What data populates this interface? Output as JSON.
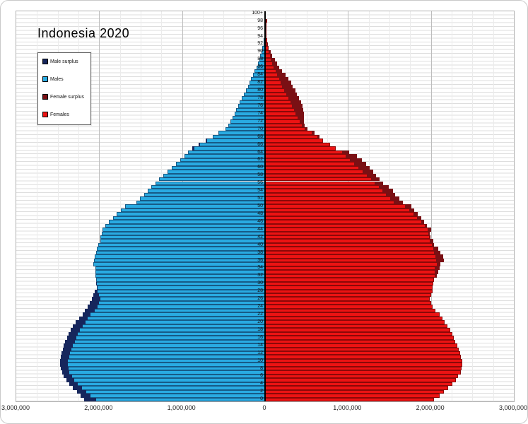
{
  "title": "Indonesia 2020",
  "legend": {
    "items": [
      {
        "label": "Male surplus",
        "color": "#16265c"
      },
      {
        "label": "Males",
        "color": "#29abe2"
      },
      {
        "label": "Female surplus",
        "color": "#7a1014"
      },
      {
        "label": "Females",
        "color": "#ec1313"
      }
    ]
  },
  "x_axis": {
    "tick_labels": [
      "3,000,000",
      "2,000,000",
      "1,000,000",
      "0",
      "1,000,000",
      "2,000,000",
      "3,000,000"
    ],
    "major_tick": 1000000,
    "minor_tick": 250000,
    "max_each_side": 3000000
  },
  "y_axis": {
    "unit": "age (single years)",
    "tick_labels": [
      "0",
      "2",
      "4",
      "6",
      "8",
      "10",
      "12",
      "14",
      "16",
      "18",
      "20",
      "22",
      "24",
      "26",
      "28",
      "30",
      "32",
      "34",
      "36",
      "38",
      "40",
      "42",
      "44",
      "46",
      "48",
      "50",
      "52",
      "54",
      "56",
      "58",
      "60",
      "62",
      "64",
      "66",
      "68",
      "70",
      "72",
      "74",
      "76",
      "78",
      "80",
      "82",
      "84",
      "86",
      "88",
      "90",
      "92",
      "94",
      "96",
      "98",
      "100+"
    ]
  },
  "chart_data": {
    "type": "bar",
    "subtype": "population_pyramid",
    "title": "Indonesia 2020",
    "orientation": "horizontal-mirrored",
    "ages": "0 to 100+ in single-year groups, bottom to top",
    "xlim_each_side": 3000000,
    "grid": true,
    "legend_position": "upper-left",
    "colors": {
      "males": "#29abe2",
      "male_surplus": "#16265c",
      "females": "#ec1313",
      "female_surplus": "#7a1014"
    },
    "series": [
      {
        "name": "Males",
        "side": "left",
        "values": [
          2180000,
          2227000,
          2270000,
          2321000,
          2361000,
          2398000,
          2426000,
          2446000,
          2463000,
          2469000,
          2469000,
          2463000,
          2452000,
          2440000,
          2426000,
          2412000,
          2389000,
          2370000,
          2347000,
          2321000,
          2284000,
          2242000,
          2199000,
          2171000,
          2142000,
          2114000,
          2085000,
          2071000,
          2057000,
          2029000,
          2037000,
          2040000,
          2048000,
          2043000,
          2048000,
          2071000,
          2065000,
          2057000,
          2037000,
          2029000,
          2014000,
          1990000,
          1986000,
          1972000,
          1958000,
          1924000,
          1881000,
          1835000,
          1787000,
          1739000,
          1688000,
          1551000,
          1509000,
          1460000,
          1417000,
          1375000,
          1324000,
          1276000,
          1225000,
          1176000,
          1125000,
          1077000,
          1026000,
          974000,
          926000,
          878000,
          800000,
          715000,
          630000,
          565000,
          480000,
          440000,
          415000,
          392000,
          368000,
          348000,
          327000,
          305000,
          281000,
          257000,
          232000,
          208000,
          188000,
          168000,
          145000,
          125000,
          105000,
          88000,
          71000,
          57000,
          43000,
          31000,
          20000,
          15000,
          11000,
          8000,
          5000,
          3000,
          2000,
          1000,
          1000
        ]
      },
      {
        "name": "Females",
        "side": "right",
        "values": [
          2040000,
          2103000,
          2154000,
          2211000,
          2259000,
          2302000,
          2330000,
          2359000,
          2373000,
          2381000,
          2376000,
          2364000,
          2353000,
          2336000,
          2316000,
          2296000,
          2273000,
          2259000,
          2231000,
          2202000,
          2168000,
          2137000,
          2103000,
          2052000,
          2023000,
          2003000,
          1989000,
          2003000,
          2018000,
          2023000,
          2032000,
          2040000,
          2074000,
          2088000,
          2103000,
          2117000,
          2154000,
          2145000,
          2117000,
          2088000,
          2040000,
          2032000,
          1989000,
          1989000,
          2003000,
          1955000,
          1920000,
          1885000,
          1845000,
          1800000,
          1760000,
          1660000,
          1620000,
          1570000,
          1540000,
          1490000,
          1421000,
          1384000,
          1341000,
          1302000,
          1264000,
          1222000,
          1170000,
          1108000,
          1017000,
          850000,
          780000,
          700000,
          654000,
          597000,
          512000,
          477000,
          467000,
          470000,
          469000,
          460000,
          449000,
          432000,
          412000,
          384000,
          370000,
          332000,
          313000,
          279000,
          245000,
          207000,
          173000,
          145000,
          117000,
          88000,
          65000,
          45000,
          31000,
          25000,
          20000,
          15000,
          11000,
          8000,
          5000,
          3000,
          3000
        ]
      }
    ],
    "surplus_note": "Male surplus = max(0, males-females) drawn dark navy at tip of left bar; Female surplus = max(0, females-males) drawn dark red at tip of right bar"
  }
}
